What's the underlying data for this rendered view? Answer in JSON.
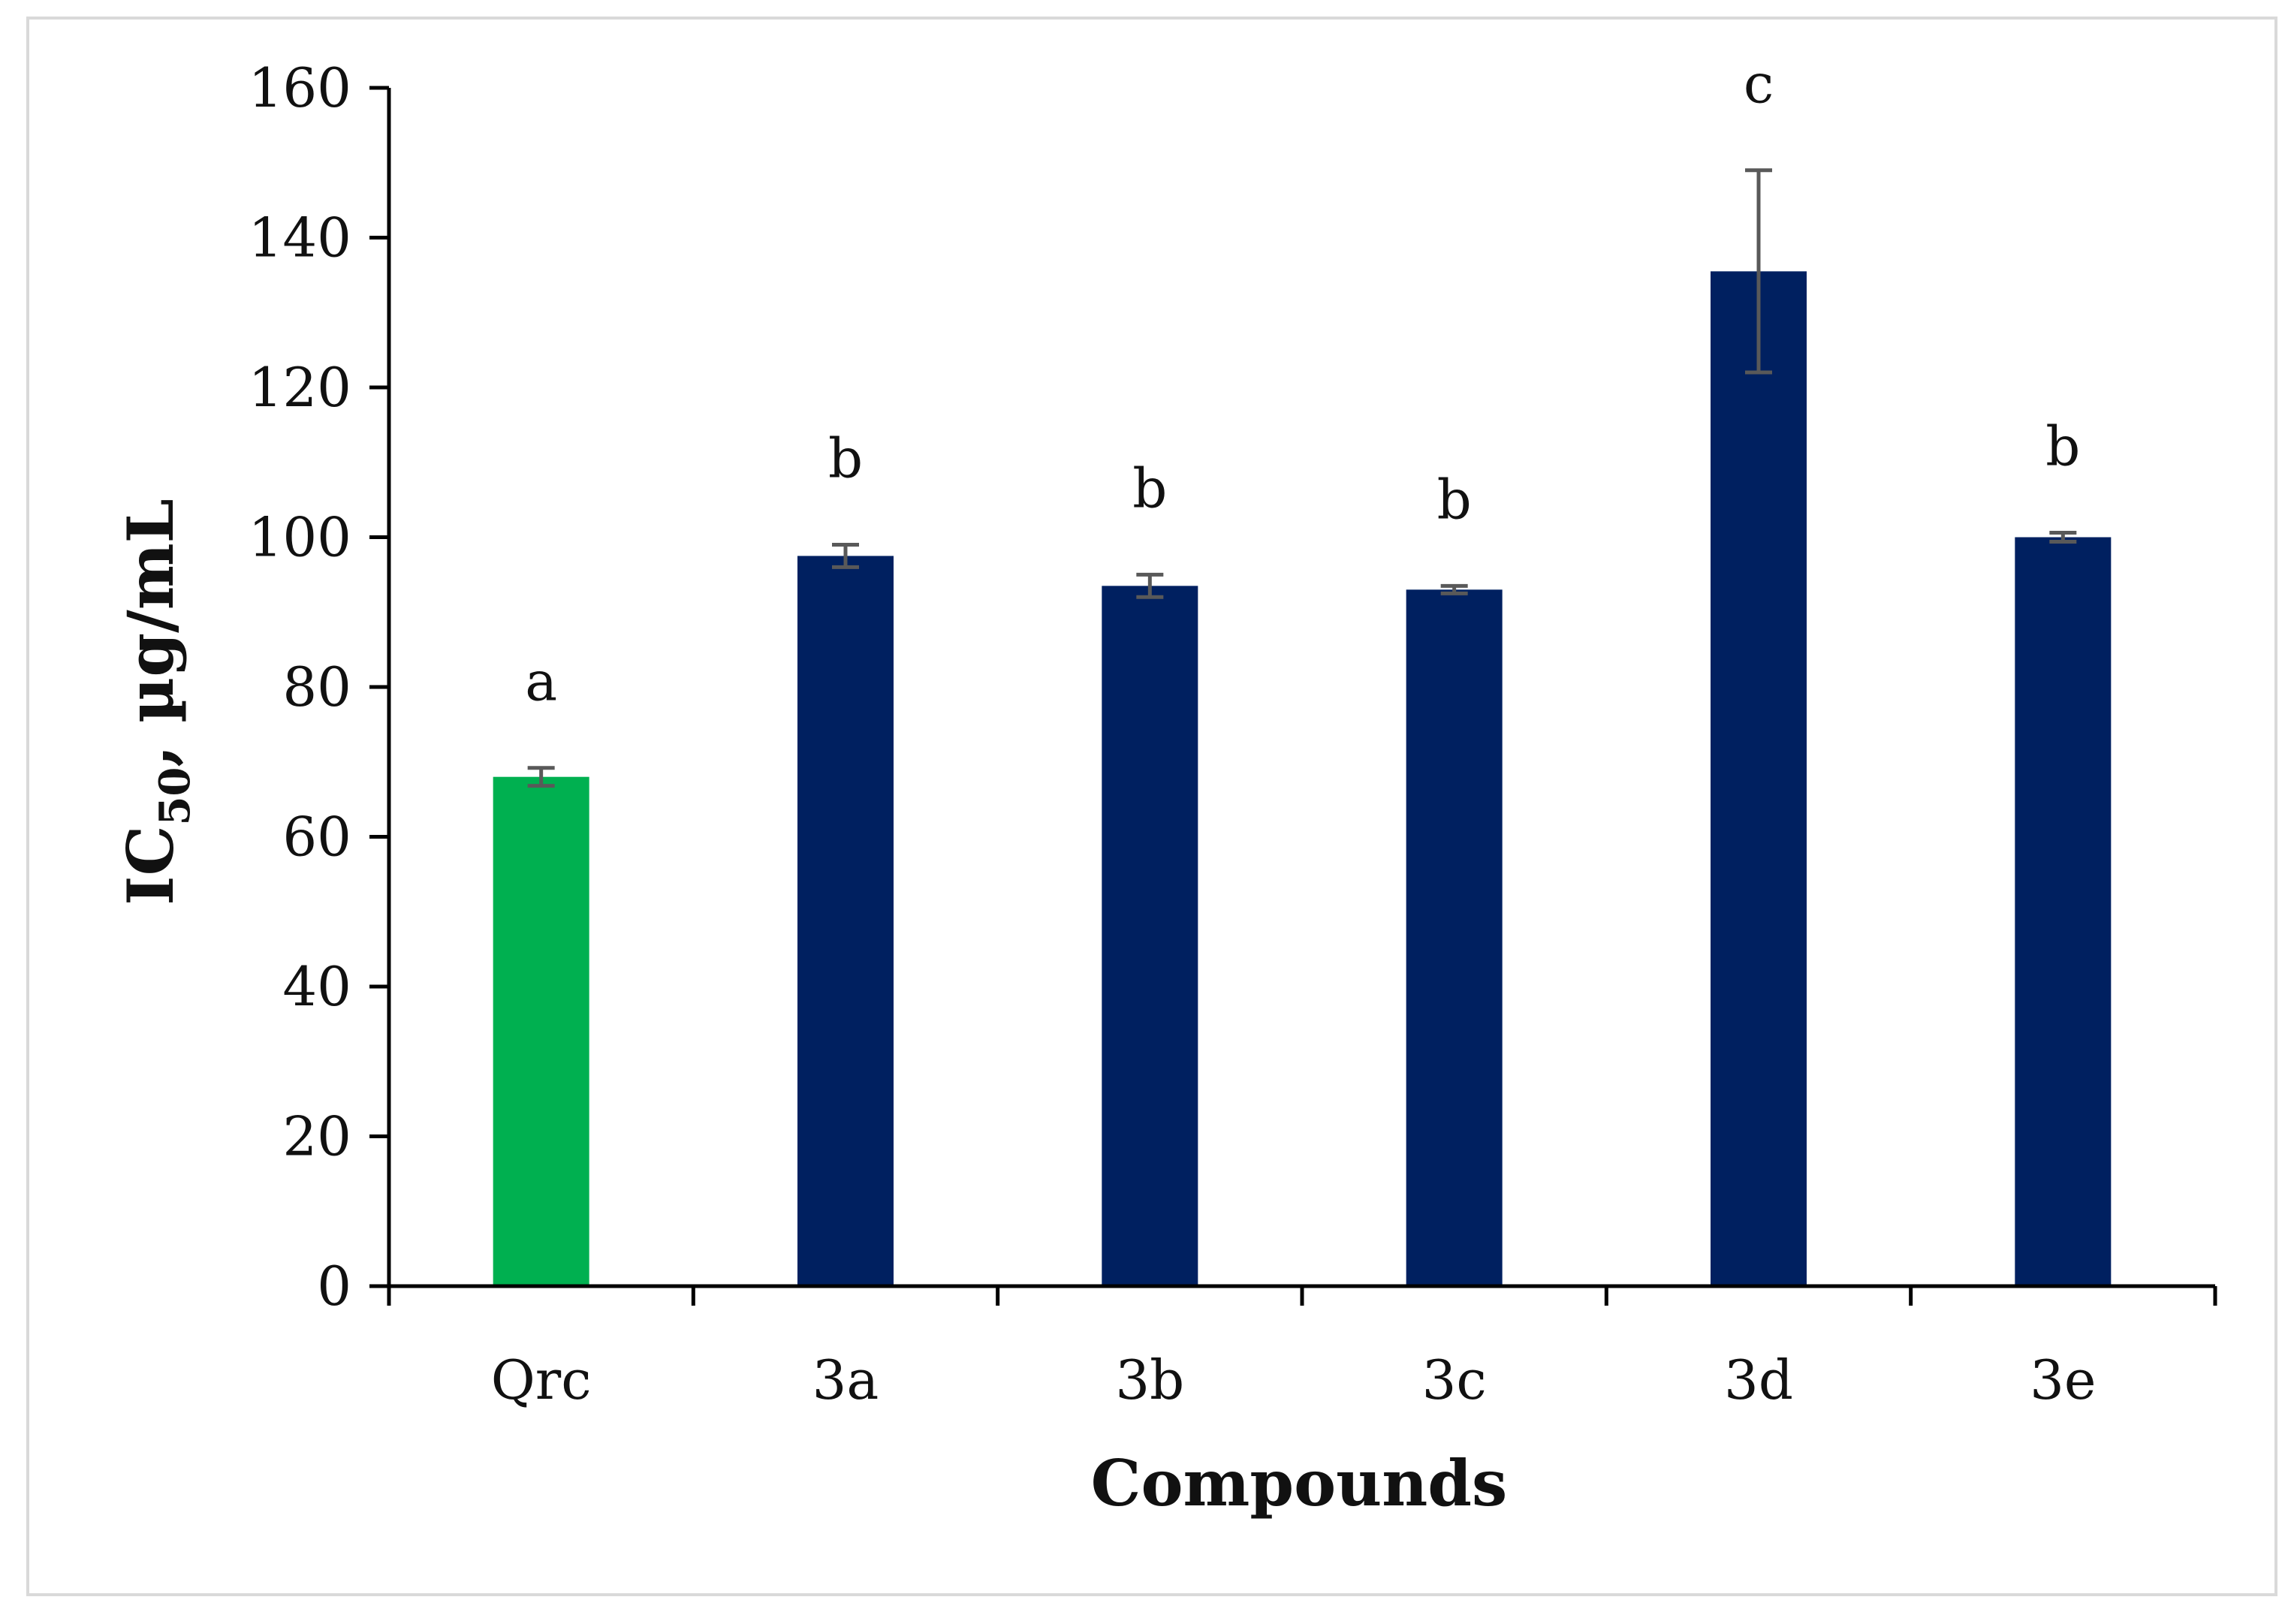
{
  "chart_data": {
    "type": "bar",
    "categories": [
      "Qrc",
      "3a",
      "3b",
      "3c",
      "3d",
      "3e"
    ],
    "values": [
      68,
      97.5,
      93.5,
      93,
      135.5,
      100
    ],
    "errors": [
      1.2,
      1.5,
      1.5,
      0.5,
      13.5,
      0.6
    ],
    "significance_letters": [
      "a",
      "b",
      "b",
      "b",
      "c",
      "b"
    ],
    "bar_colors": [
      "#00b050",
      "#002060",
      "#002060",
      "#002060",
      "#002060",
      "#002060"
    ],
    "error_bar_color": "#595959",
    "xlabel": "Compounds",
    "ylabel": {
      "main": "IC",
      "subscript": "50",
      "suffix": ", µg/mL"
    },
    "ylim": [
      0,
      160
    ],
    "yticks": [
      "0",
      "20",
      "40",
      "60",
      "80",
      "100",
      "120",
      "140",
      "160"
    ],
    "grid": false,
    "legend": "none"
  }
}
